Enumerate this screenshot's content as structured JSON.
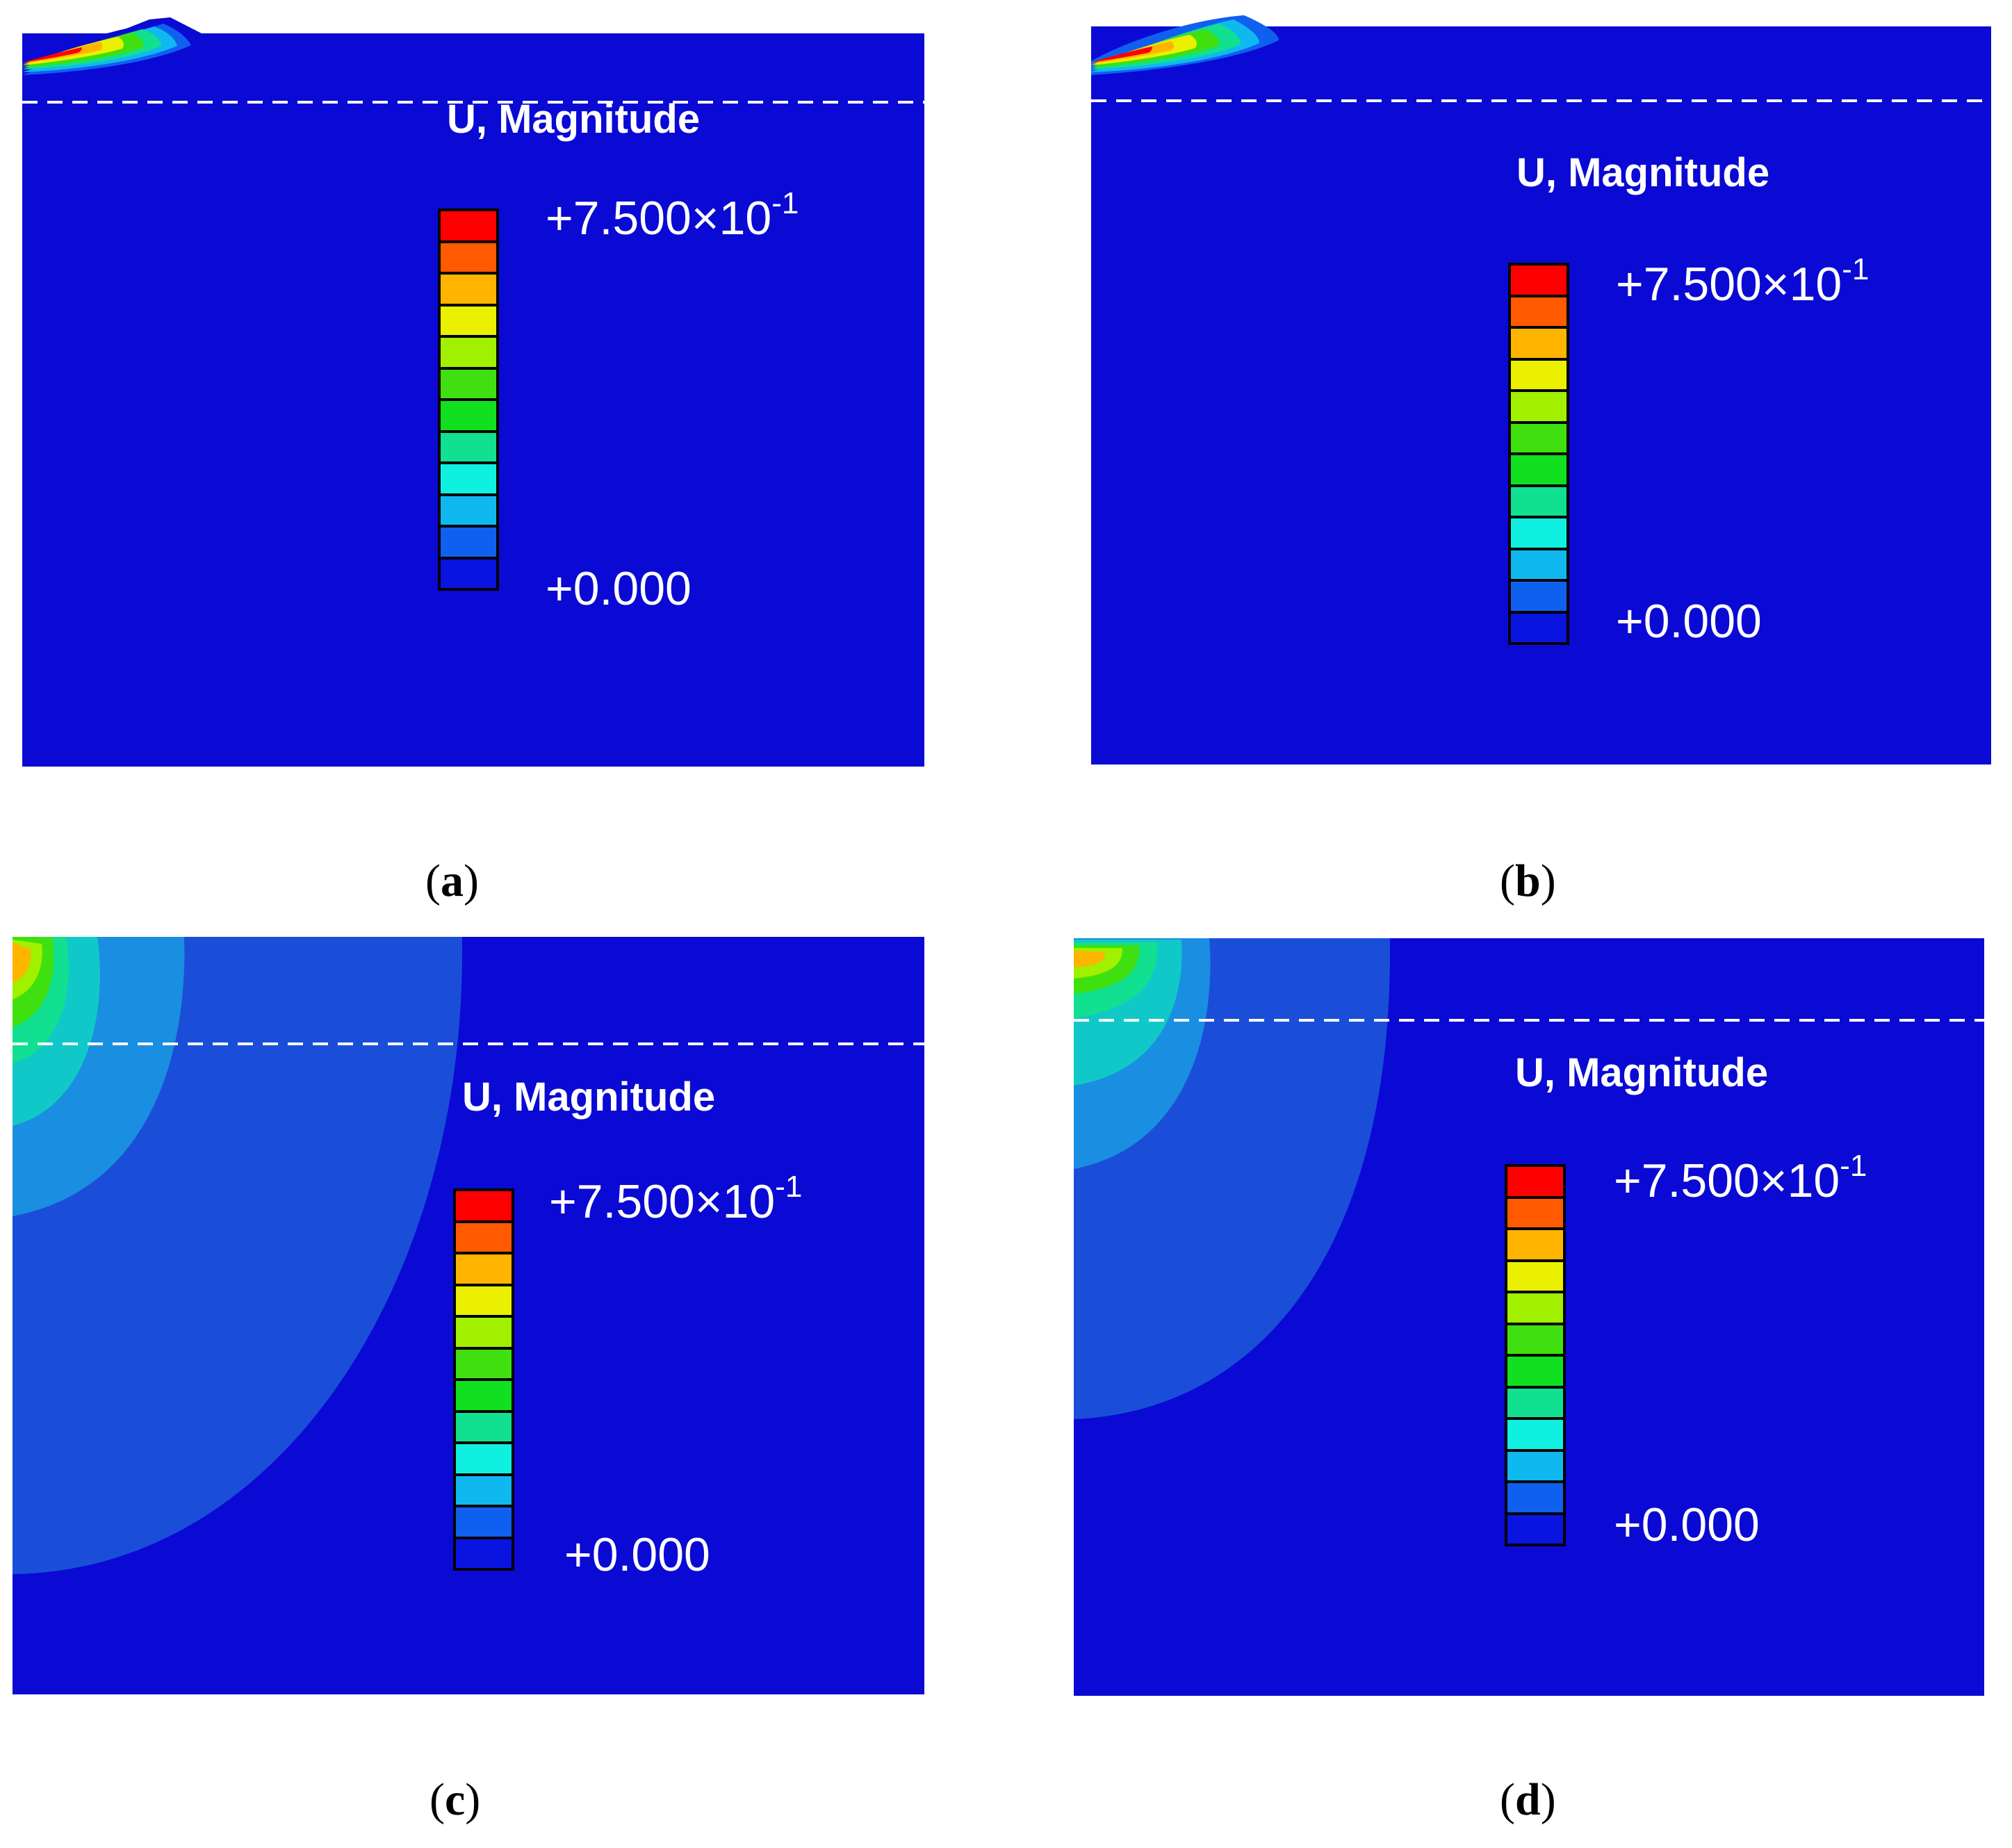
{
  "legend": {
    "title": "U, Magnitude",
    "max_mantissa": "+7.500×10",
    "max_exponent": "-1",
    "min_label": "+0.000",
    "colors": [
      "#ff0000",
      "#ff5a00",
      "#ffb400",
      "#eaf000",
      "#a0f000",
      "#40e010",
      "#10e020",
      "#10e090",
      "#10f0e0",
      "#10b8f0",
      "#1060f0",
      "#0a14e0"
    ]
  },
  "panels": [
    {
      "id": "a",
      "caption": "a"
    },
    {
      "id": "b",
      "caption": "b"
    },
    {
      "id": "c",
      "caption": "c"
    },
    {
      "id": "d",
      "caption": "d"
    }
  ]
}
